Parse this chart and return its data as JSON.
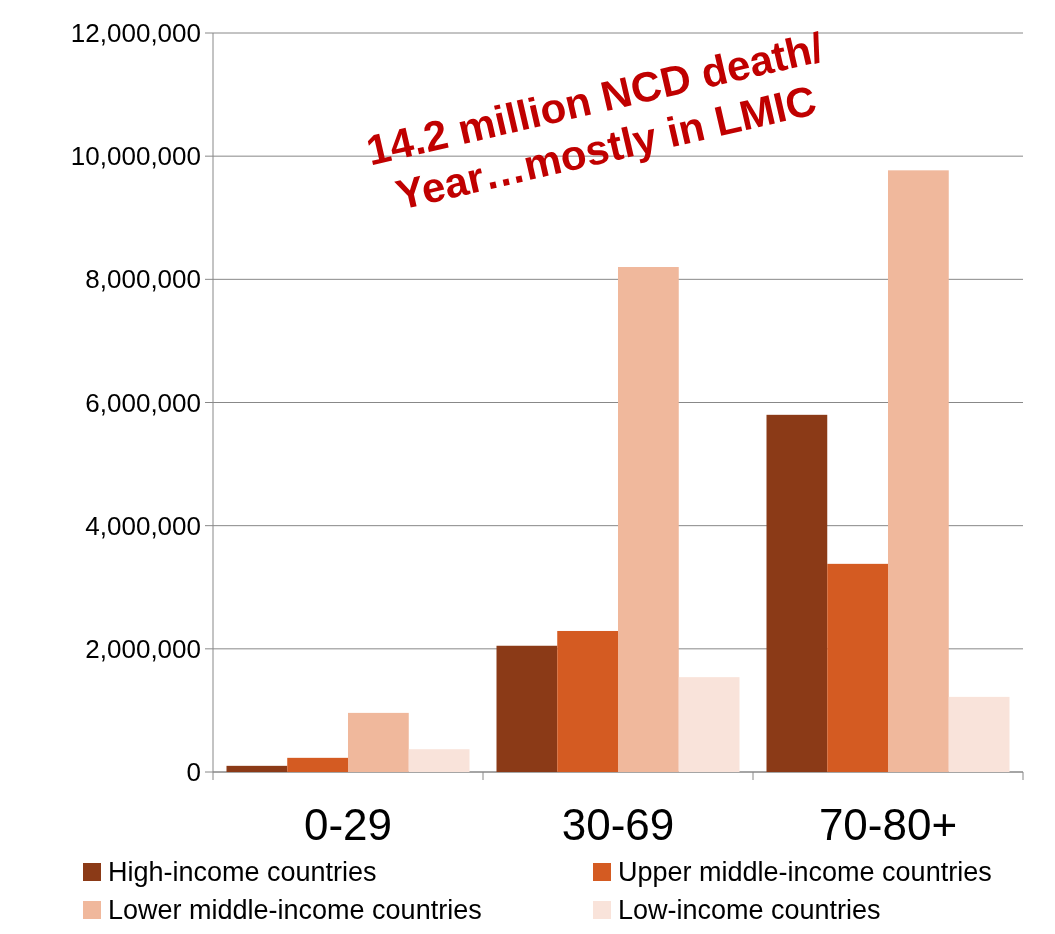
{
  "chart_data": {
    "type": "bar",
    "categories": [
      "0-29",
      "30-69",
      "70-80+"
    ],
    "series": [
      {
        "name": "High-income countries",
        "color": "#8b3a17",
        "values": [
          100000,
          2050000,
          5800000
        ]
      },
      {
        "name": "Upper middle-income countries",
        "color": "#d45b22",
        "values": [
          230000,
          2290000,
          3380000
        ]
      },
      {
        "name": "Lower middle-income countries",
        "color": "#f0b89c",
        "values": [
          960000,
          8200000,
          9770000
        ]
      },
      {
        "name": "Low-income countries",
        "color": "#f9e3da",
        "values": [
          370000,
          1540000,
          1220000
        ]
      }
    ],
    "ylim": [
      0,
      12000000
    ],
    "yticks": [
      {
        "value": 0,
        "label": "0"
      },
      {
        "value": 2000000,
        "label": "2,000,000"
      },
      {
        "value": 4000000,
        "label": "4,000,000"
      },
      {
        "value": 6000000,
        "label": "6,000,000"
      },
      {
        "value": 8000000,
        "label": "8,000,000"
      },
      {
        "value": 10000000,
        "label": "10,000,000"
      },
      {
        "value": 12000000,
        "label": "12,000,000"
      }
    ],
    "grid": "y",
    "legend": "bottom",
    "annotations": [
      "14.2 million NCD death/ Year…mostly in LMIC"
    ]
  }
}
